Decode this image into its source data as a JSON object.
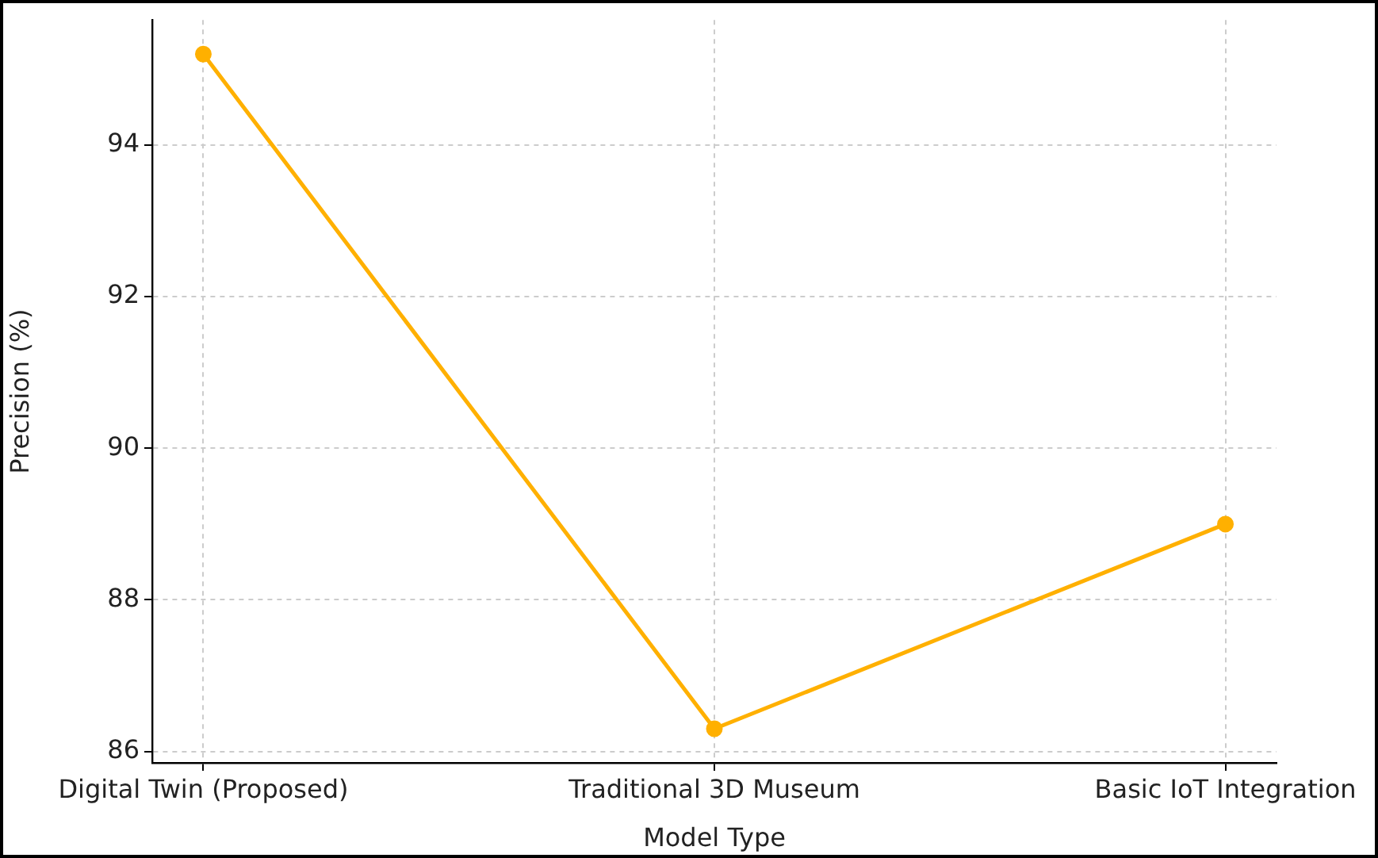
{
  "chart_data": {
    "type": "line",
    "xlabel": "Model Type",
    "ylabel": "Precision (%)",
    "categories": [
      "Digital Twin (Proposed)",
      "Traditional 3D Museum",
      "Basic IoT Integration"
    ],
    "series": [
      {
        "color": "#ffb000",
        "values": [
          95.2,
          86.3,
          89.0
        ]
      }
    ],
    "ylim": [
      85.85,
      95.65
    ],
    "yticks": [
      86,
      88,
      90,
      92,
      94
    ],
    "grid": true,
    "legend": false,
    "marker": "circle",
    "line_style": "solid"
  }
}
